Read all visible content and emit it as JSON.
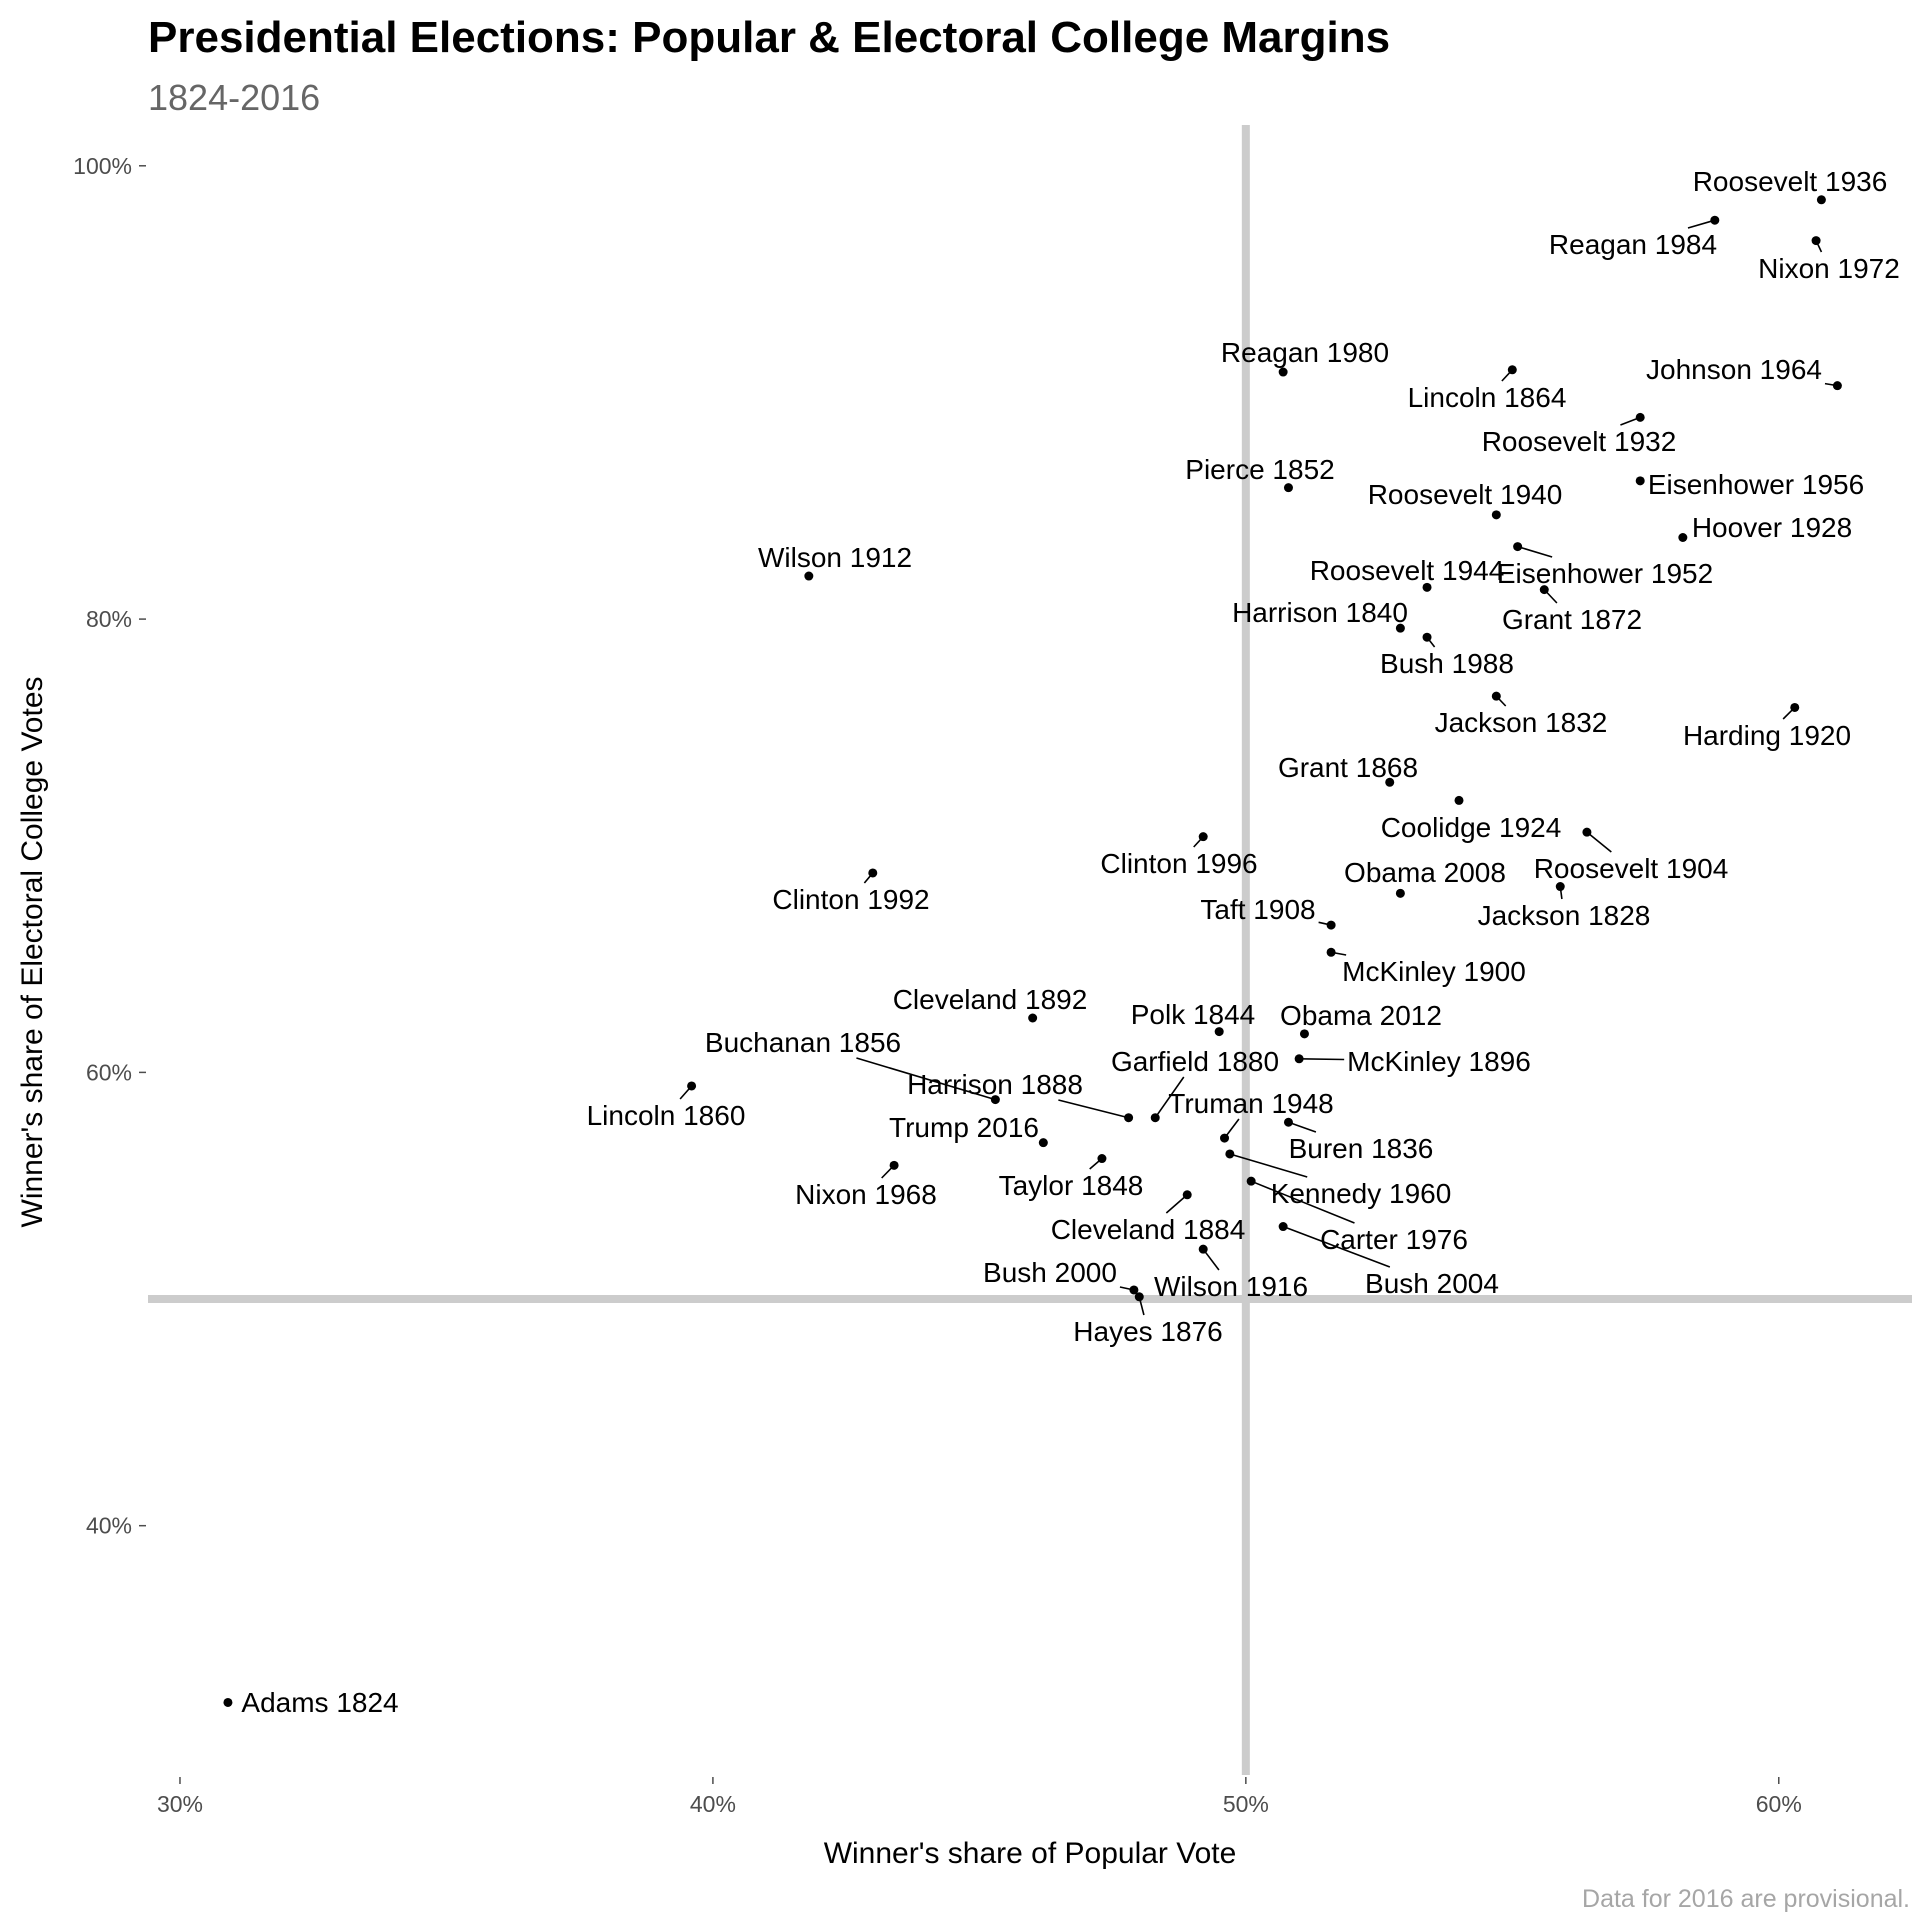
{
  "chart_data": {
    "type": "scatter",
    "title": "Presidential Elections: Popular & Electoral College Margins",
    "subtitle": "1824-2016",
    "xlabel": "Winner's share of Popular Vote",
    "ylabel": "Winner's share of Electoral College Votes",
    "caption": "Data for 2016 are provisional.",
    "xlim": [
      0.294,
      0.625
    ],
    "ylim": [
      0.29,
      1.018
    ],
    "x_ticks": [
      0.3,
      0.4,
      0.5,
      0.6
    ],
    "x_tick_labels": [
      "30%",
      "40%",
      "50%",
      "60%"
    ],
    "y_ticks": [
      0.4,
      0.6,
      0.8,
      1.0
    ],
    "y_tick_labels": [
      "40%",
      "60%",
      "80%",
      "100%"
    ],
    "reference_lines": {
      "x": 0.5,
      "y": 0.5
    },
    "grid": false,
    "colors": {
      "points": "#000000",
      "reference_lines": "#cccccc",
      "caption": "#a6a6a6",
      "subtitle": "#666666"
    },
    "points": [
      {
        "label": "Adams 1824",
        "x": 0.309,
        "y": 0.322
      },
      {
        "label": "Jackson 1828",
        "x": 0.559,
        "y": 0.682
      },
      {
        "label": "Jackson 1832",
        "x": 0.547,
        "y": 0.766
      },
      {
        "label": "Buren 1836",
        "x": 0.508,
        "y": 0.578
      },
      {
        "label": "Harrison 1840",
        "x": 0.529,
        "y": 0.796
      },
      {
        "label": "Polk 1844",
        "x": 0.495,
        "y": 0.618
      },
      {
        "label": "Taylor 1848",
        "x": 0.473,
        "y": 0.562
      },
      {
        "label": "Pierce 1852",
        "x": 0.508,
        "y": 0.858
      },
      {
        "label": "Buchanan 1856",
        "x": 0.453,
        "y": 0.588
      },
      {
        "label": "Lincoln 1860",
        "x": 0.396,
        "y": 0.594
      },
      {
        "label": "Lincoln 1864",
        "x": 0.55,
        "y": 0.91
      },
      {
        "label": "Grant 1868",
        "x": 0.527,
        "y": 0.728
      },
      {
        "label": "Grant 1872",
        "x": 0.556,
        "y": 0.813
      },
      {
        "label": "Hayes 1876",
        "x": 0.48,
        "y": 0.501
      },
      {
        "label": "Garfield 1880",
        "x": 0.483,
        "y": 0.58
      },
      {
        "label": "Cleveland 1884",
        "x": 0.489,
        "y": 0.546
      },
      {
        "label": "Harrison 1888",
        "x": 0.478,
        "y": 0.58
      },
      {
        "label": "Cleveland 1892",
        "x": 0.46,
        "y": 0.624
      },
      {
        "label": "McKinley 1896",
        "x": 0.51,
        "y": 0.606
      },
      {
        "label": "McKinley 1900",
        "x": 0.516,
        "y": 0.653
      },
      {
        "label": "Roosevelt 1904",
        "x": 0.564,
        "y": 0.706
      },
      {
        "label": "Taft 1908",
        "x": 0.516,
        "y": 0.665
      },
      {
        "label": "Wilson 1912",
        "x": 0.418,
        "y": 0.819
      },
      {
        "label": "Wilson 1916",
        "x": 0.492,
        "y": 0.522
      },
      {
        "label": "Harding 1920",
        "x": 0.603,
        "y": 0.761
      },
      {
        "label": "Coolidge 1924",
        "x": 0.54,
        "y": 0.72
      },
      {
        "label": "Hoover 1928",
        "x": 0.582,
        "y": 0.836
      },
      {
        "label": "Roosevelt 1932",
        "x": 0.574,
        "y": 0.889
      },
      {
        "label": "Roosevelt 1936",
        "x": 0.608,
        "y": 0.985
      },
      {
        "label": "Roosevelt 1940",
        "x": 0.547,
        "y": 0.846
      },
      {
        "label": "Roosevelt 1944",
        "x": 0.534,
        "y": 0.814
      },
      {
        "label": "Truman 1948",
        "x": 0.496,
        "y": 0.571
      },
      {
        "label": "Eisenhower 1952",
        "x": 0.551,
        "y": 0.832
      },
      {
        "label": "Eisenhower 1956",
        "x": 0.574,
        "y": 0.861
      },
      {
        "label": "Kennedy 1960",
        "x": 0.497,
        "y": 0.564
      },
      {
        "label": "Johnson 1964",
        "x": 0.611,
        "y": 0.903
      },
      {
        "label": "Nixon 1968",
        "x": 0.434,
        "y": 0.559
      },
      {
        "label": "Nixon 1972",
        "x": 0.607,
        "y": 0.967
      },
      {
        "label": "Carter 1976",
        "x": 0.501,
        "y": 0.552
      },
      {
        "label": "Reagan 1980",
        "x": 0.507,
        "y": 0.909
      },
      {
        "label": "Reagan 1984",
        "x": 0.588,
        "y": 0.976
      },
      {
        "label": "Bush 1988",
        "x": 0.534,
        "y": 0.792
      },
      {
        "label": "Clinton 1992",
        "x": 0.43,
        "y": 0.688
      },
      {
        "label": "Clinton 1996",
        "x": 0.492,
        "y": 0.704
      },
      {
        "label": "Bush 2000",
        "x": 0.479,
        "y": 0.504
      },
      {
        "label": "Bush 2004",
        "x": 0.507,
        "y": 0.532
      },
      {
        "label": "Obama 2008",
        "x": 0.529,
        "y": 0.679
      },
      {
        "label": "Obama 2012",
        "x": 0.511,
        "y": 0.617
      },
      {
        "label": "Trump 2016",
        "x": 0.462,
        "y": 0.569
      }
    ]
  }
}
